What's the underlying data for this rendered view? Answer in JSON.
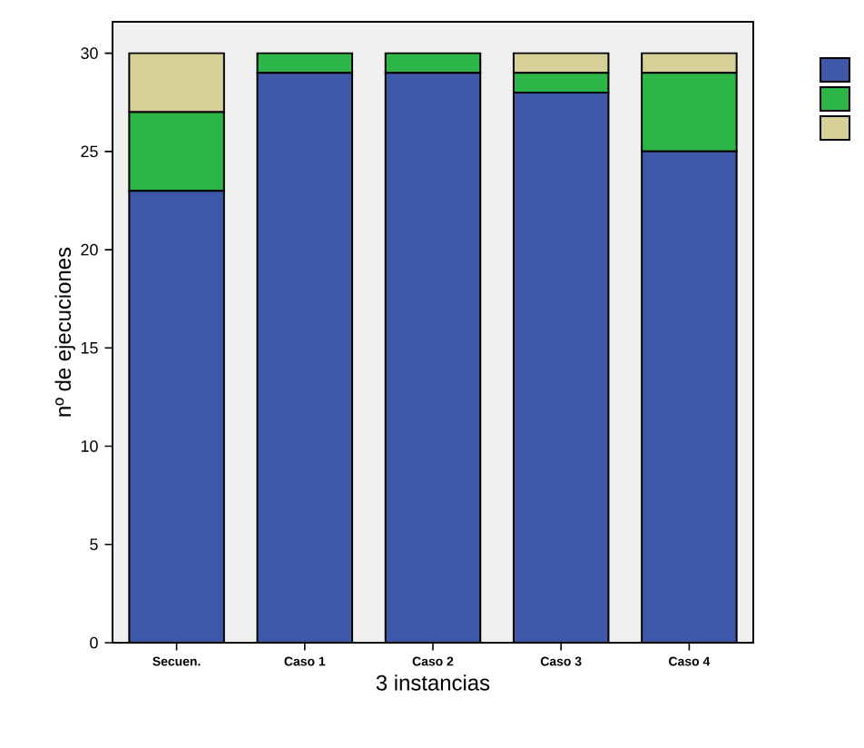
{
  "chart_data": {
    "type": "bar",
    "stacked": true,
    "xlabel": "3 instancias",
    "ylabel": "nº de ejecuciones",
    "categories": [
      "Secuen.",
      "Caso 1",
      "Caso 2",
      "Caso 3",
      "Caso 4"
    ],
    "series": [
      {
        "color": "#3f57a8",
        "values": [
          23,
          29,
          29,
          28,
          25
        ]
      },
      {
        "color": "#2db548",
        "values": [
          4,
          1,
          1,
          1,
          4
        ]
      },
      {
        "color": "#d6cf98",
        "values": [
          3,
          0,
          0,
          1,
          1
        ]
      }
    ],
    "ylim": [
      0,
      31.6
    ],
    "yticks": [
      0,
      5,
      10,
      15,
      20,
      25,
      30
    ],
    "grid": false
  }
}
